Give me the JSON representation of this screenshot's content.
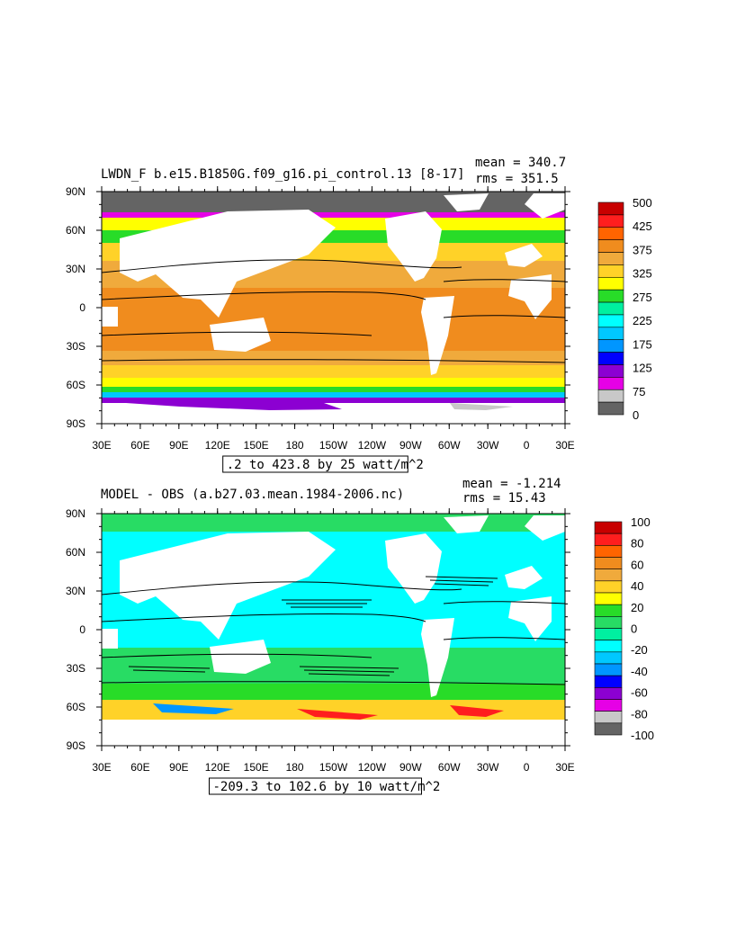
{
  "panels": [
    {
      "title": "LWDN_F b.e15.B1850G.f09_g16.pi_control.13 [8-17]",
      "mean_label": "mean = 340.7",
      "rms_label": "rms = 351.5",
      "range_label": ".2 to 423.8 by 25 watt/m^2",
      "colorbar_labels": [
        "500",
        "425",
        "375",
        "325",
        "275",
        "225",
        "175",
        "125",
        "75",
        "0"
      ],
      "colorbar_colors": [
        "#c80000",
        "#ff1e1e",
        "#ff6400",
        "#f08c1e",
        "#f0aa3c",
        "#ffd228",
        "#ffff00",
        "#28dc28",
        "#00f0a0",
        "#00ffff",
        "#00c8ff",
        "#0096ff",
        "#0000ff",
        "#8c00d2",
        "#e600e6",
        "#c8c8c8",
        "#646464"
      ]
    },
    {
      "title": "MODEL - OBS (a.b27.03.mean.1984-2006.nc)",
      "mean_label": "mean = -1.214",
      "rms_label": "rms = 15.43",
      "range_label": "-209.3 to 102.6 by 10 watt/m^2",
      "colorbar_labels": [
        "100",
        "80",
        "60",
        "40",
        "20",
        "0",
        "-20",
        "-40",
        "-60",
        "-80",
        "-100"
      ],
      "colorbar_colors": [
        "#c80000",
        "#ff1e1e",
        "#ff6400",
        "#f08c1e",
        "#f0aa3c",
        "#ffd228",
        "#ffff00",
        "#28dc28",
        "#28dc64",
        "#00f0a0",
        "#00ffff",
        "#00c8ff",
        "#0096ff",
        "#0000ff",
        "#8c00d2",
        "#e600e6",
        "#c8c8c8",
        "#646464"
      ]
    }
  ],
  "x_ticks": [
    "30E",
    "60E",
    "90E",
    "120E",
    "150E",
    "180",
    "150W",
    "120W",
    "90W",
    "60W",
    "30W",
    "0",
    "30E"
  ],
  "y_ticks": [
    "90N",
    "60N",
    "30N",
    "0",
    "30S",
    "60S",
    "90S"
  ],
  "projection": "cylindrical equidistant, 30E to 30E",
  "ocean_colors": {
    "panel1": "#f08c1e",
    "panel2": "#00ffff",
    "land": "#ffffff"
  }
}
